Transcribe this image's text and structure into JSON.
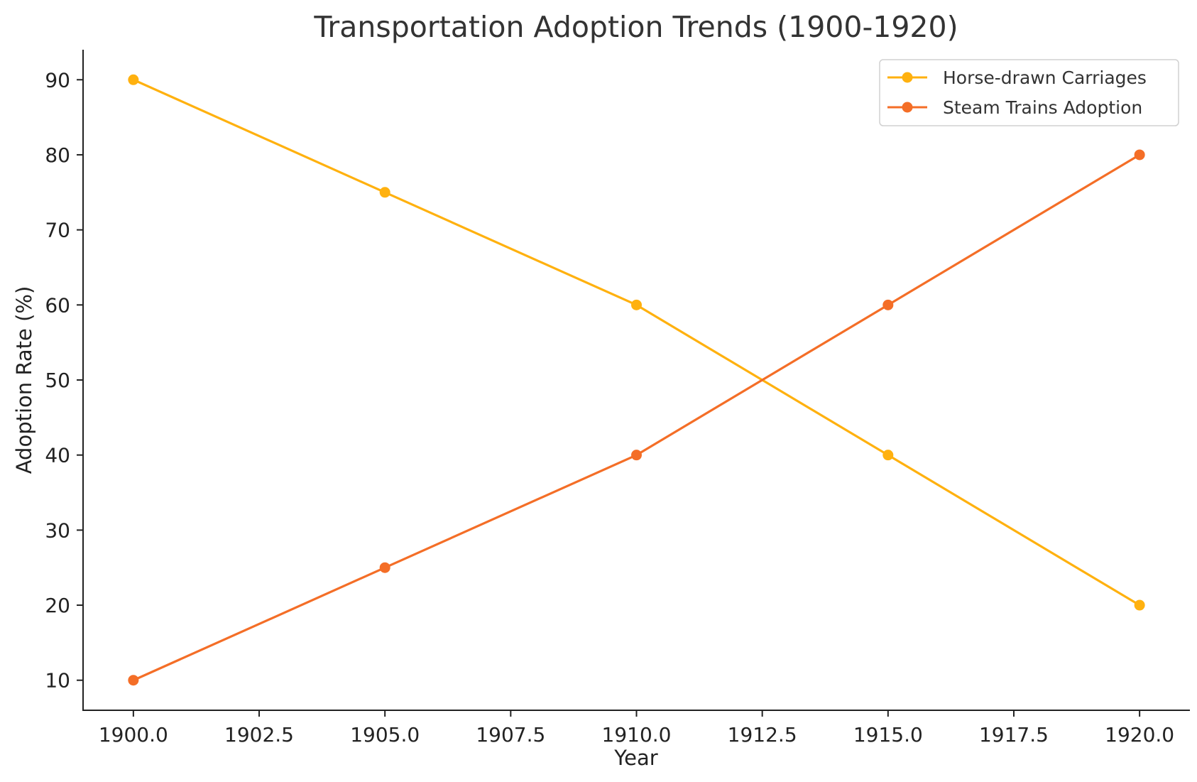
{
  "chart_data": {
    "type": "line",
    "title": "Transportation Adoption Trends (1900-1920)",
    "xlabel": "Year",
    "ylabel": "Adoption Rate (%)",
    "x": [
      1900,
      1905,
      1910,
      1915,
      1920
    ],
    "xticks": [
      1900,
      1902.5,
      1905,
      1907.5,
      1910,
      1912.5,
      1915,
      1917.5,
      1920
    ],
    "xtick_labels": [
      "1900.0",
      "1902.5",
      "1905.0",
      "1907.5",
      "1910.0",
      "1912.5",
      "1915.0",
      "1917.5",
      "1920.0"
    ],
    "yticks": [
      10,
      20,
      30,
      40,
      50,
      60,
      70,
      80,
      90
    ],
    "ytick_labels": [
      "10",
      "20",
      "30",
      "40",
      "50",
      "60",
      "70",
      "80",
      "90"
    ],
    "xlim": [
      1899,
      1921
    ],
    "ylim": [
      6,
      94
    ],
    "grid": false,
    "legend_position": "top-right",
    "series": [
      {
        "name": "Horse-drawn Carriages",
        "values": [
          90,
          75,
          60,
          40,
          20
        ],
        "color": "#FFB10F",
        "marker": "circle"
      },
      {
        "name": "Steam Trains Adoption",
        "values": [
          10,
          25,
          40,
          60,
          80
        ],
        "color": "#F46E27",
        "marker": "circle"
      }
    ]
  }
}
